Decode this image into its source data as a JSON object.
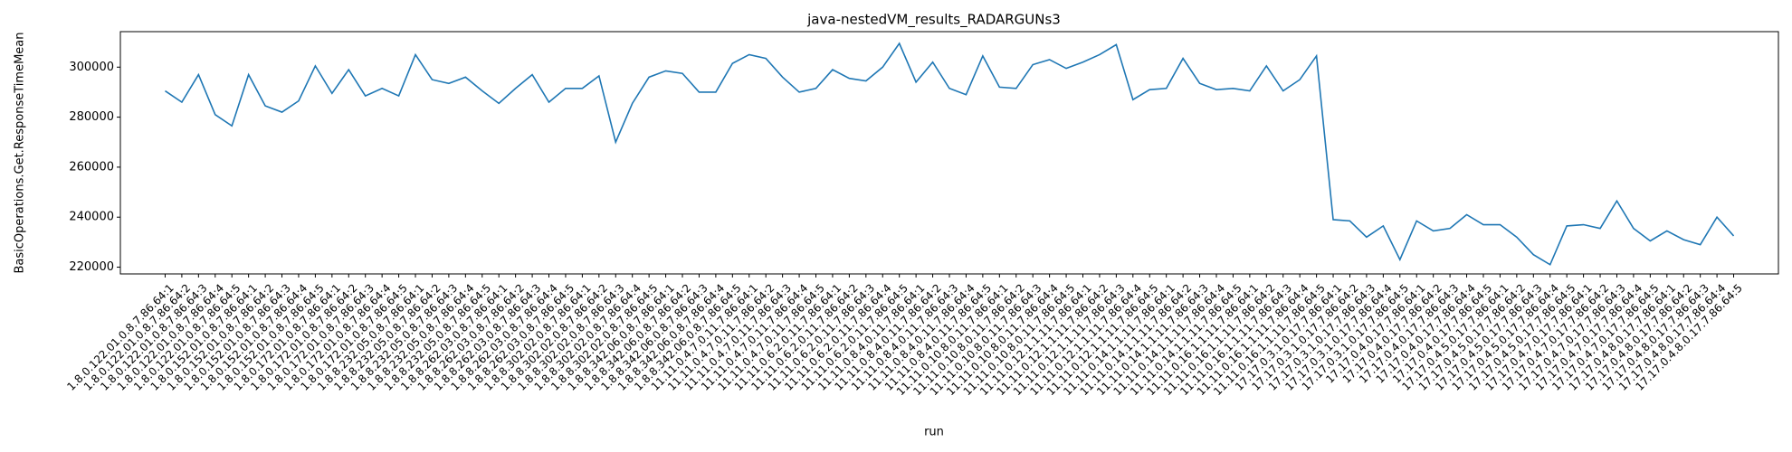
{
  "chart_data": {
    "type": "line",
    "title": "java-nestedVM_results_RADARGUNs3",
    "xlabel": "run",
    "ylabel": "BasicOperations.Get.ResponseTimeMean",
    "versions_note_free": null,
    "categories": [
      "1.8.0.122.01.0.8.7.86.64:1",
      "1.8.0.122.01.0.8.7.86.64:2",
      "1.8.0.122.01.0.8.7.86.64:3",
      "1.8.0.122.01.0.8.7.86.64:4",
      "1.8.0.122.01.0.8.7.86.64:5",
      "1.8.0.152.01.0.8.7.86.64:1",
      "1.8.0.152.01.0.8.7.86.64:2",
      "1.8.0.152.01.0.8.7.86.64:3",
      "1.8.0.152.01.0.8.7.86.64:4",
      "1.8.0.152.01.0.8.7.86.64:5",
      "1.8.0.172.01.0.8.7.86.64:1",
      "1.8.0.172.01.0.8.7.86.64:2",
      "1.8.0.172.01.0.8.7.86.64:3",
      "1.8.0.172.01.0.8.7.86.64:4",
      "1.8.0.172.01.0.8.7.86.64:5",
      "1.8.8.232.05.0.8.7.86.64:1",
      "1.8.8.232.05.0.8.7.86.64:2",
      "1.8.8.232.05.0.8.7.86.64:3",
      "1.8.8.232.05.0.8.7.86.64:4",
      "1.8.8.232.05.0.8.7.86.64:5",
      "1.8.8.262.03.0.8.7.86.64:1",
      "1.8.8.262.03.0.8.7.86.64:2",
      "1.8.8.262.03.0.8.7.86.64:3",
      "1.8.8.262.03.0.8.7.86.64:4",
      "1.8.8.262.03.0.8.7.86.64:5",
      "1.8.8.302.02.0.8.7.86.64:1",
      "1.8.8.302.02.0.8.7.86.64:2",
      "1.8.8.302.02.0.8.7.86.64:3",
      "1.8.8.302.02.0.8.7.86.64:4",
      "1.8.8.302.02.0.8.7.86.64:5",
      "1.8.8.342.06.0.8.7.86.64:1",
      "1.8.8.342.06.0.8.7.86.64:2",
      "1.8.8.342.06.0.8.7.86.64:3",
      "1.8.8.342.06.0.8.7.86.64:4",
      "1.8.8.342.06.0.8.7.86.64:5",
      "11.11.0.4.7.0.11.7.86.64:1",
      "11.11.0.4.7.0.11.7.86.64:2",
      "11.11.0.4.7.0.11.7.86.64:3",
      "11.11.0.4.7.0.11.7.86.64:4",
      "11.11.0.4.7.0.11.7.86.64:5",
      "11.11.0.6.2.0.11.7.86.64:1",
      "11.11.0.6.2.0.11.7.86.64:2",
      "11.11.0.6.2.0.11.7.86.64:3",
      "11.11.0.6.2.0.11.7.86.64:4",
      "11.11.0.6.2.0.11.7.86.64:5",
      "11.11.0.8.4.0.11.7.86.64:1",
      "11.11.0.8.4.0.11.7.86.64:2",
      "11.11.0.8.4.0.11.7.86.64:3",
      "11.11.0.8.4.0.11.7.86.64:4",
      "11.11.0.8.4.0.11.7.86.64:5",
      "11.11.0.10.8.0.11.7.86.64:1",
      "11.11.0.10.8.0.11.7.86.64:2",
      "11.11.0.10.8.0.11.7.86.64:3",
      "11.11.0.10.8.0.11.7.86.64:4",
      "11.11.0.10.8.0.11.7.86.64:5",
      "11.11.0.12.1.1.11.7.86.64:1",
      "11.11.0.12.1.1.11.7.86.64:2",
      "11.11.0.12.1.1.11.7.86.64:3",
      "11.11.0.12.1.1.11.7.86.64:4",
      "11.11.0.12.1.1.11.7.86.64:5",
      "11.11.0.14.1.1.11.7.86.64:1",
      "11.11.0.14.1.1.11.7.86.64:2",
      "11.11.0.14.1.1.11.7.86.64:3",
      "11.11.0.14.1.1.11.7.86.64:4",
      "11.11.0.14.1.1.11.7.86.64:5",
      "11.11.0.16.1.1.11.7.86.64:1",
      "11.11.0.16.1.1.11.7.86.64:2",
      "11.11.0.16.1.1.11.7.86.64:3",
      "11.11.0.16.1.1.11.7.86.64:4",
      "11.11.0.16.1.1.11.7.86.64:5",
      "17.17.0.3.1.0.17.7.86.64:1",
      "17.17.0.3.1.0.17.7.86.64:2",
      "17.17.0.3.1.0.17.7.86.64:3",
      "17.17.0.3.1.0.17.7.86.64:4",
      "17.17.0.3.1.0.17.7.86.64:5",
      "17.17.0.4.0.17.7.86.64:1",
      "17.17.0.4.0.17.7.86.64:2",
      "17.17.0.4.0.17.7.86.64:3",
      "17.17.0.4.0.17.7.86.64:4",
      "17.17.0.4.0.17.7.86.64:5",
      "17.17.0.4.5.0.17.7.86.64:1",
      "17.17.0.4.5.0.17.7.86.64:2",
      "17.17.0.4.5.0.17.7.86.64:3",
      "17.17.0.4.5.0.17.7.86.64:4",
      "17.17.0.4.5.0.17.7.86.64:5",
      "17.17.0.4.7.0.17.7.86.64:1",
      "17.17.0.4.7.0.17.7.86.64:2",
      "17.17.0.4.7.0.17.7.86.64:3",
      "17.17.0.4.7.0.17.7.86.64:4",
      "17.17.0.4.7.0.17.7.86.64:5",
      "17.17.0.4.8.0.17.7.86.64:1",
      "17.17.0.4.8.0.17.7.86.64:2",
      "17.17.0.4.8.0.17.7.86.64:3",
      "17.17.0.4.8.0.17.7.86.64:4",
      "17.17.0.4.8.0.17.7.86.64:5"
    ],
    "series": [
      {
        "name": "BasicOperations.Get.ResponseTimeMean",
        "color": "#1f77b4",
        "values": [
          290500,
          286000,
          297000,
          281000,
          276500,
          297000,
          284500,
          282000,
          286500,
          300500,
          289500,
          299000,
          288500,
          291500,
          288500,
          305000,
          295000,
          293500,
          296000,
          290500,
          285500,
          291500,
          297000,
          286000,
          291500,
          291500,
          296500,
          270000,
          285500,
          296000,
          298500,
          297500,
          290000,
          290000,
          301500,
          305000,
          303500,
          296000,
          290000,
          291500,
          299000,
          295500,
          294500,
          300000,
          309500,
          294000,
          302000,
          291500,
          289000,
          304500,
          292000,
          291500,
          301000,
          303000,
          299500,
          302000,
          305000,
          309000,
          287000,
          291000,
          291500,
          303500,
          293500,
          291000,
          291500,
          290500,
          300500,
          290500,
          295000,
          304500,
          239000,
          238500,
          232000,
          236500,
          223000,
          238500,
          234500,
          235500,
          241000,
          237000,
          237000,
          232000,
          225000,
          221000,
          236500,
          237000,
          235500,
          246500,
          235500,
          230500,
          234500,
          231000,
          229000,
          240000,
          232500
        ]
      }
    ],
    "ylim": [
      217300,
      314200
    ],
    "yticks": [
      220000,
      240000,
      260000,
      280000,
      300000
    ],
    "grid": false
  }
}
